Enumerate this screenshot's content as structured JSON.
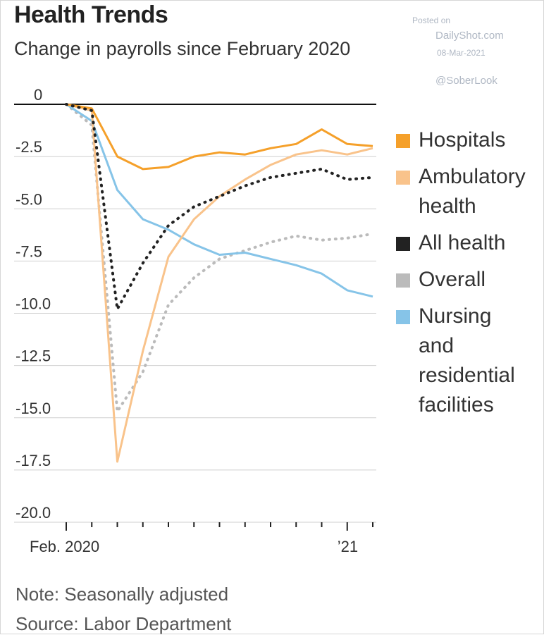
{
  "header": {
    "title": "Health Trends",
    "subtitle": "Change in payrolls since February 2020"
  },
  "watermark": {
    "posted": "Posted on",
    "site": "DailyShot.com",
    "date": "08-Mar-2021",
    "handle": "@SoberLook"
  },
  "footer": {
    "note": "Note: Seasonally adjusted",
    "source": "Source: Labor Department"
  },
  "chart_data": {
    "type": "line",
    "ylim": [
      -20,
      0
    ],
    "yticks": [
      "0",
      "-2.5",
      "-5.0",
      "-7.5",
      "-10.0",
      "-12.5",
      "-15.0",
      "-17.5",
      "-20.0"
    ],
    "x_tick_labels": [
      "Feb. 2020",
      "’21"
    ],
    "x": [
      "2020-02",
      "2020-03",
      "2020-04",
      "2020-05",
      "2020-06",
      "2020-07",
      "2020-08",
      "2020-09",
      "2020-10",
      "2020-11",
      "2020-12",
      "2021-01",
      "2021-02"
    ],
    "series": [
      {
        "name": "Hospitals",
        "color": "#f5a02a",
        "style": "solid",
        "values": [
          0,
          -0.2,
          -2.5,
          -3.1,
          -3.0,
          -2.5,
          -2.3,
          -2.4,
          -2.1,
          -1.9,
          -1.2,
          -1.9,
          -2.0
        ]
      },
      {
        "name": "Ambulatory health",
        "color": "#f9c38b",
        "style": "solid",
        "values": [
          0,
          -0.3,
          -17.1,
          -11.8,
          -7.3,
          -5.5,
          -4.4,
          -3.6,
          -2.9,
          -2.4,
          -2.2,
          -2.4,
          -2.1
        ]
      },
      {
        "name": "All health",
        "color": "#222222",
        "style": "dotted",
        "values": [
          0,
          -0.3,
          -9.8,
          -7.6,
          -5.8,
          -4.9,
          -4.4,
          -3.9,
          -3.5,
          -3.3,
          -3.1,
          -3.6,
          -3.5
        ]
      },
      {
        "name": "Overall",
        "color": "#bbbbbb",
        "style": "dotted",
        "values": [
          0,
          -1.0,
          -14.7,
          -12.8,
          -9.6,
          -8.3,
          -7.4,
          -7.0,
          -6.6,
          -6.3,
          -6.5,
          -6.4,
          -6.2
        ]
      },
      {
        "name": "Nursing and residential facilities",
        "color": "#86c4e8",
        "style": "solid",
        "values": [
          0,
          -0.8,
          -4.1,
          -5.5,
          -6.0,
          -6.7,
          -7.2,
          -7.1,
          -7.4,
          -7.7,
          -8.1,
          -8.9,
          -9.2
        ]
      }
    ],
    "legend_labels": [
      "Hospitals",
      "Ambulatory\nhealth",
      "All health",
      "Overall",
      "Nursing\nand\nresidential\nfacilities"
    ],
    "grid": true,
    "legend_position": "right"
  }
}
